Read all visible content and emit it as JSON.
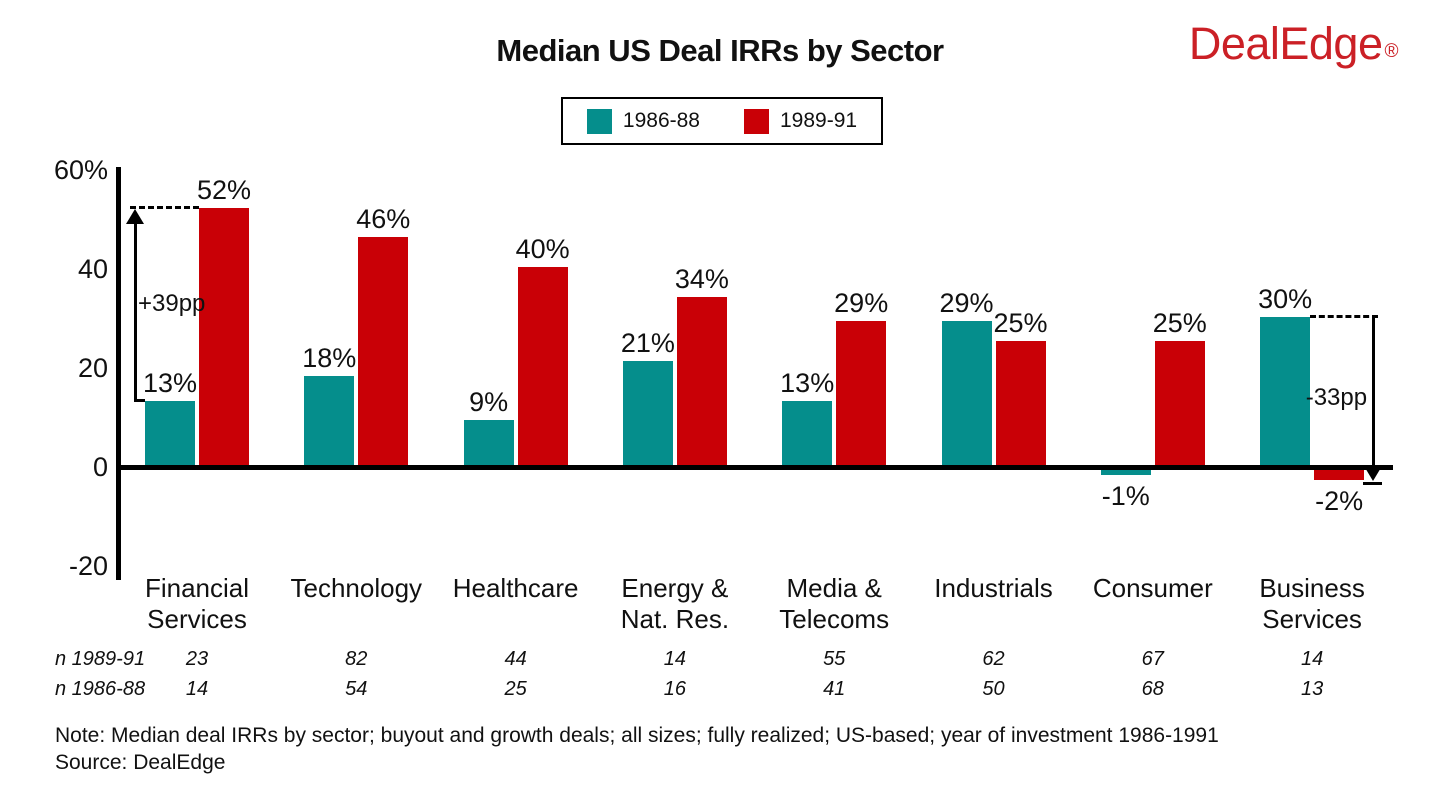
{
  "header": {
    "title": "Median US Deal IRRs by Sector",
    "logo": "DealEdge",
    "logo_registered": "®"
  },
  "chart_data": {
    "type": "bar",
    "title": "Median US Deal IRRs by Sector",
    "categories": [
      "Financial\nServices",
      "Technology",
      "Healthcare",
      "Energy &\nNat. Res.",
      "Media &\nTelecoms",
      "Industrials",
      "Consumer",
      "Business\nServices"
    ],
    "series": [
      {
        "name": "1986-88",
        "color": "#058E8C",
        "values": [
          13,
          18,
          9,
          21,
          13,
          29,
          -1,
          30
        ]
      },
      {
        "name": "1989-91",
        "color": "#C90006",
        "values": [
          52,
          46,
          40,
          34,
          29,
          25,
          25,
          -2
        ]
      }
    ],
    "value_suffix": "%",
    "ylim": [
      -20,
      60
    ],
    "y_ticks": [
      {
        "v": 60,
        "label": "60%"
      },
      {
        "v": 40,
        "label": "40"
      },
      {
        "v": 20,
        "label": "20"
      },
      {
        "v": 0,
        "label": "0"
      },
      {
        "v": -20,
        "label": "-20"
      }
    ],
    "grid": false,
    "legend_position": "top-center",
    "annotations": [
      {
        "label": "+39pp",
        "category": 0,
        "direction": "up",
        "from": 13,
        "to": 52
      },
      {
        "label": "-33pp",
        "category": 7,
        "direction": "down",
        "from": 30,
        "to": -2
      }
    ]
  },
  "footnotes": {
    "n_rows": [
      {
        "label": "n 1989-91",
        "values": [
          "23",
          "82",
          "44",
          "14",
          "55",
          "62",
          "67",
          "14"
        ]
      },
      {
        "label": "n 1986-88",
        "values": [
          "14",
          "54",
          "25",
          "16",
          "41",
          "50",
          "68",
          "13"
        ]
      }
    ],
    "note": "Note: Median deal IRRs by sector; buyout and growth deals; all sizes; fully realized; US-based; year of investment 1986-1991",
    "source": "Source: DealEdge"
  }
}
